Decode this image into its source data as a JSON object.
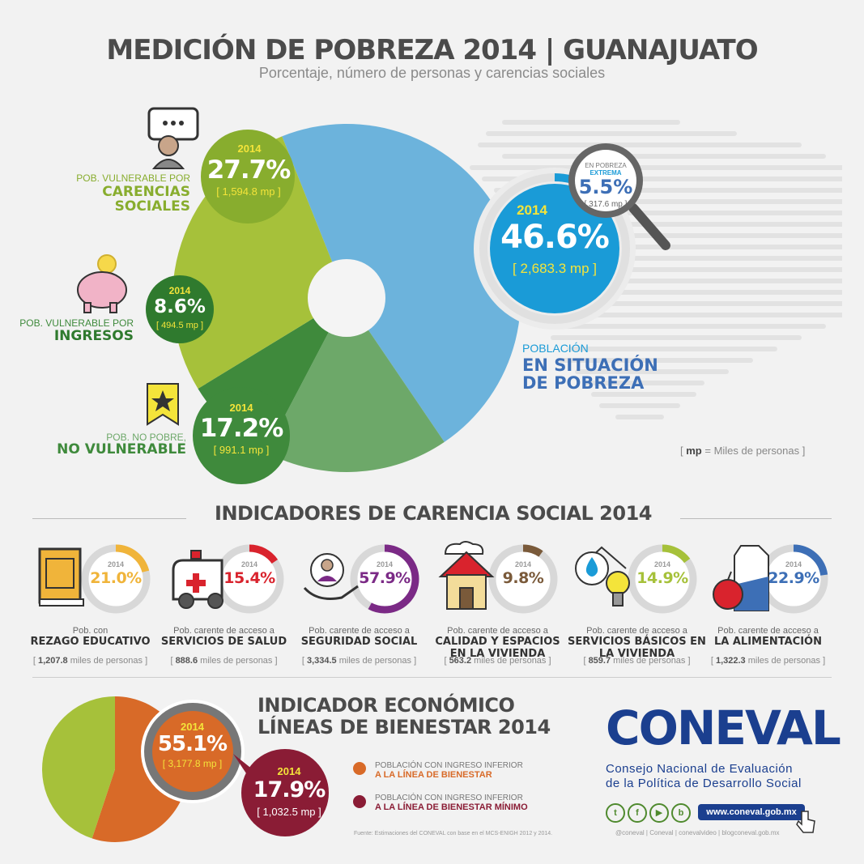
{
  "header": {
    "title": "MEDICIÓN DE POBREZA 2014 | GUANAJUATO",
    "subtitle": "Porcentaje, número de personas y carencias sociales"
  },
  "chart_data": [
    {
      "type": "pie",
      "title": "",
      "slices": [
        {
          "key": "pobreza",
          "label_small": "POBLACIÓN",
          "label_big": "EN SITUACIÓN DE POBREZA",
          "year": "2014",
          "value": 46.6,
          "value_text": "46.6%",
          "amount_text": "[ 2,683.3 mp ]",
          "color": "#6cb3dc"
        },
        {
          "key": "no_vulnerable",
          "label_small": "POB. NO POBRE,",
          "label_big": "NO VULNERABLE",
          "year": "2014",
          "value": 17.2,
          "value_text": "17.2%",
          "amount_text": "[ 991.1 mp ]",
          "color": "#6da869"
        },
        {
          "key": "vuln_ingresos",
          "label_small": "POB. VULNERABLE POR",
          "label_big": "INGRESOS",
          "year": "2014",
          "value": 8.6,
          "value_text": "8.6%",
          "amount_text": "[ 494.5 mp ]",
          "color": "#3f8a3c"
        },
        {
          "key": "vuln_carencias",
          "label_small": "POB. VULNERABLE POR",
          "label_big": "CARENCIAS SOCIALES",
          "year": "2014",
          "value": 27.7,
          "value_text": "27.7%",
          "amount_text": "[ 1,594.8 mp ]",
          "color": "#a6c13a"
        }
      ],
      "extreme": {
        "label_1": "EN POBREZA",
        "label_2": "EXTREMA",
        "value": 5.5,
        "value_text": "5.5%",
        "amount_text": "[ 317.6 mp ]"
      },
      "legend_note": {
        "bracket_open": "[",
        "abbr": "mp",
        "text": "= Miles de personas",
        "bracket_close": "]"
      }
    },
    {
      "type": "gauge",
      "title": "INDICADORES DE CARENCIA SOCIAL 2014",
      "items": [
        {
          "year": "2014",
          "value": 21.0,
          "value_text": "21.0%",
          "color": "#f0b43a",
          "caption_small": "Pob. con",
          "caption_big": "REZAGO EDUCATIVO",
          "amount_num": "1,207.8",
          "amount_unit": "miles de personas"
        },
        {
          "year": "2014",
          "value": 15.4,
          "value_text": "15.4%",
          "color": "#d9232d",
          "caption_small": "Pob. carente de acceso a",
          "caption_big": "SERVICIOS DE SALUD",
          "amount_num": "888.6",
          "amount_unit": "miles de personas"
        },
        {
          "year": "2014",
          "value": 57.9,
          "value_text": "57.9%",
          "color": "#7b2a86",
          "caption_small": "Pob. carente de acceso a",
          "caption_big": "SEGURIDAD SOCIAL",
          "amount_num": "3,334.5",
          "amount_unit": "miles de personas"
        },
        {
          "year": "2014",
          "value": 9.8,
          "value_text": "9.8%",
          "color": "#7a5a3a",
          "caption_small": "Pob. carente de acceso a",
          "caption_big": "CALIDAD Y ESPACIOS EN LA VIVIENDA",
          "amount_num": "563.2",
          "amount_unit": "miles de personas"
        },
        {
          "year": "2014",
          "value": 14.9,
          "value_text": "14.9%",
          "color": "#a6c13a",
          "caption_small": "Pob. carente de acceso a",
          "caption_big": "SERVICIOS BÁSICOS EN LA VIVIENDA",
          "amount_num": "859.7",
          "amount_unit": "miles de personas"
        },
        {
          "year": "2014",
          "value": 22.9,
          "value_text": "22.9%",
          "color": "#3d6fb6",
          "caption_small": "Pob. carente de acceso a",
          "caption_big": "LA ALIMENTACIÓN",
          "amount_num": "1,322.3",
          "amount_unit": "miles de personas"
        }
      ]
    },
    {
      "type": "pie",
      "title": "INDICADOR ECONÓMICO LÍNEAS DE BIENESTAR 2014",
      "title_line1": "INDICADOR ECONÓMICO",
      "title_line2": "LÍNEAS DE BIENESTAR 2014",
      "slices": [
        {
          "key": "bienestar",
          "year": "2014",
          "value": 55.1,
          "value_text": "55.1%",
          "amount_text": "[ 3,177.8 mp ]",
          "color": "#d86a28",
          "legend_small": "POBLACIÓN CON INGRESO INFERIOR",
          "legend_big": "A LA LÍNEA DE BIENESTAR"
        },
        {
          "key": "minimo",
          "year": "2014",
          "value": 17.9,
          "value_text": "17.9%",
          "amount_text": "[ 1,032.5 mp ]",
          "color": "#8a1c35",
          "legend_small": "POBLACIÓN CON INGRESO INFERIOR",
          "legend_big": "A LA LÍNEA DE BIENESTAR MÍNIMO"
        }
      ],
      "rest_color": "#a6c13a"
    }
  ],
  "footer": {
    "source": "Fuente: Estimaciones del CONEVAL con base en el MCS-ENIGH 2012 y 2014.",
    "brand": "CONEVAL",
    "org_line1": "Consejo Nacional de Evaluación",
    "org_line2": "de la Política de Desarrollo Social",
    "url": "www.coneval.gob.mx",
    "social": [
      "@coneval",
      "Coneval",
      "conevalvideo",
      "blogconeval.gob.mx"
    ],
    "social_icons": [
      "twitter-icon",
      "facebook-icon",
      "youtube-icon",
      "blog-icon"
    ]
  }
}
